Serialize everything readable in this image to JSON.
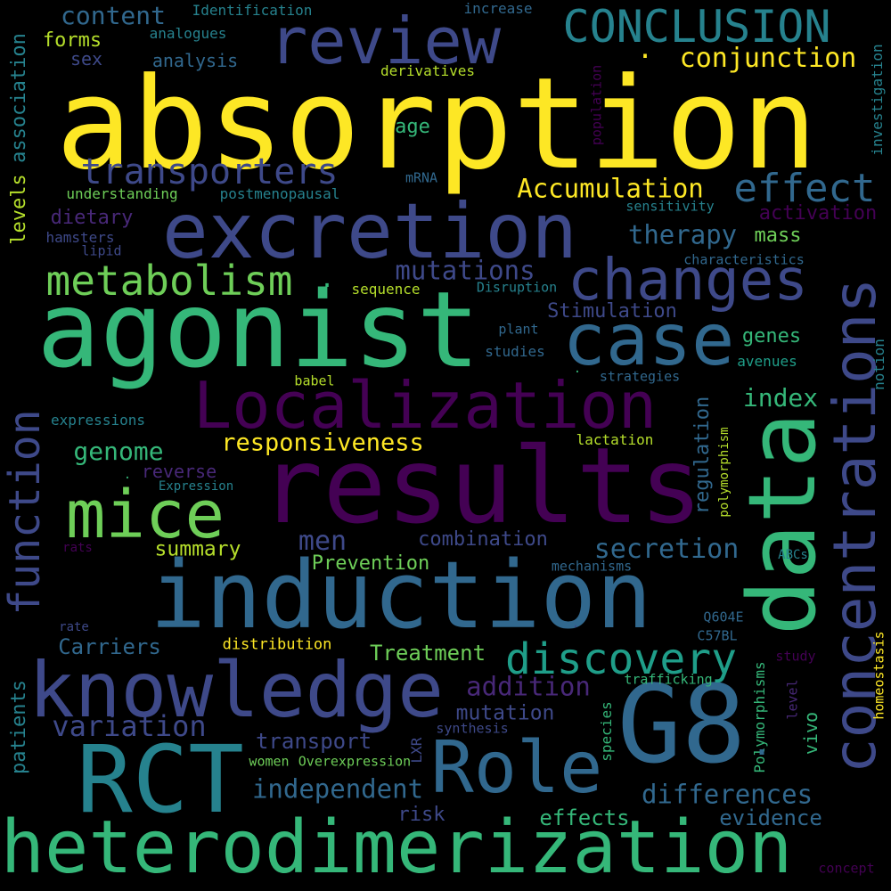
{
  "canvas": {
    "background": "#000000"
  },
  "palette": {
    "yellow": "#fde725",
    "lime": "#b5de2b",
    "green": "#6ece58",
    "teal_green": "#35b779",
    "teal": "#1f9e89",
    "cyan_blue": "#26828e",
    "blue": "#31688e",
    "indigo": "#3e4989",
    "violet": "#482878",
    "purple": "#440154"
  },
  "words": {
    "absorption": "absorption",
    "agonist": "agonist",
    "results": "results",
    "induction": "induction",
    "heterodimerization": "heterodimerization",
    "excretion": "excretion",
    "G8": "G8",
    "knowledge": "knowledge",
    "RCT": "RCT",
    "data": "data",
    "concentrations": "concentrations",
    "Localization": "Localization",
    "review": "review",
    "Role": "Role",
    "case": "case",
    "changes": "changes",
    "mice": "mice",
    "metabolism": "metabolism",
    "CONCLUSION": "CONCLUSION",
    "transporters": "transporters",
    "effect": "effect",
    "function": "function",
    "discovery": "discovery",
    "content": "content",
    "conjunction": "conjunction",
    "Accumulation": "Accumulation",
    "therapy": "therapy",
    "mutations": "mutations",
    "Stimulation": "Stimulation",
    "responsiveness": "responsiveness",
    "genome": "genome",
    "index": "index",
    "secretion": "secretion",
    "men": "men",
    "combination": "combination",
    "Prevention": "Prevention",
    "summary": "summary",
    "Carriers": "Carriers",
    "addition": "addition",
    "variation": "variation",
    "Treatment": "Treatment",
    "mutation": "mutation",
    "transport": "transport",
    "independent": "independent",
    "differences": "differences",
    "effects": "effects",
    "evidence": "evidence",
    "risk": "risk",
    "regulation": "regulation",
    "forms": "forms",
    "sex": "sex",
    "analysis": "analysis",
    "analogues": "analogues",
    "Identification": "Identification",
    "increase": "increase",
    "derivatives": "derivatives",
    "age": "age",
    "mRNA": "mRNA",
    "understanding": "understanding",
    "postmenopausal": "postmenopausal",
    "dietary": "dietary",
    "hamsters": "hamsters",
    "lipid": "lipid",
    "sensitivity": "sensitivity",
    "activation": "activation",
    "mass": "mass",
    "characteristics": "characteristics",
    "sequence": "sequence",
    "Disruption": "Disruption",
    "plant": "plant",
    "genes": "genes",
    "studies": "studies",
    "avenues": "avenues",
    "babel": "babel",
    "strategies": "strategies",
    "expressions": "expressions",
    "lactation": "lactation",
    "reverse": "reverse",
    "Expression": "Expression",
    "rats": "rats",
    "mechanisms": "mechanisms",
    "ABCs": "ABCs",
    "rate": "rate",
    "distribution": "distribution",
    "Q604E": "Q604E",
    "C57BL": "C57BL",
    "study": "study",
    "trafficking": "trafficking",
    "synthesis": "synthesis",
    "women": "women",
    "Overexpression": "Overexpression",
    "LXR": "LXR",
    "species": "species",
    "Polymorphisms": "Polymorphisms",
    "vivo": "vivo",
    "level": "level",
    "homeostasis": "homeostasis",
    "concept": "concept",
    "polymorphism": "polymorphism",
    "notion": "notion",
    "investigation": "investigation",
    "population": "population",
    "association": "association",
    "levels": "levels",
    "patients": "patients",
    "period": "."
  }
}
